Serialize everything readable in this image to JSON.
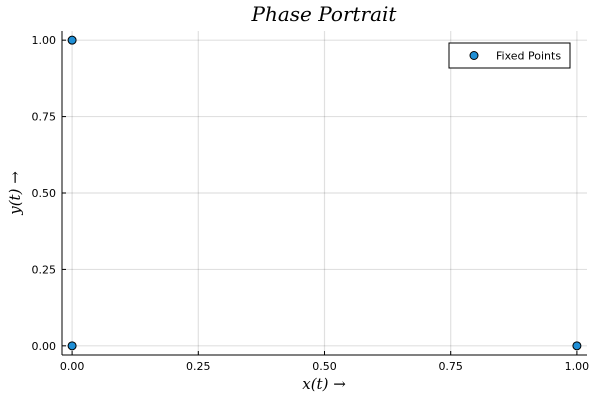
{
  "chart_data": {
    "type": "scatter",
    "title": "Phase Portrait",
    "xlabel": "x(t) →",
    "ylabel": "y(t) →",
    "xlim": [
      -0.02,
      1.02
    ],
    "ylim": [
      -0.03,
      1.03
    ],
    "xticks": [
      0,
      0.25,
      0.5,
      0.75,
      1
    ],
    "xtick_labels": [
      "0.00",
      "0.25",
      "0.50",
      "0.75",
      "1.00"
    ],
    "yticks": [
      0,
      0.25,
      0.5,
      0.75,
      1
    ],
    "ytick_labels": [
      "0.00",
      "0.25",
      "0.50",
      "0.75",
      "1.00"
    ],
    "grid": true,
    "legend_position": "top-right",
    "series": [
      {
        "name": "Fixed Points",
        "color": "#1f8fd6",
        "points": [
          {
            "x": 0,
            "y": 1
          },
          {
            "x": 0,
            "y": 0
          },
          {
            "x": 1,
            "y": 0
          }
        ]
      }
    ]
  }
}
